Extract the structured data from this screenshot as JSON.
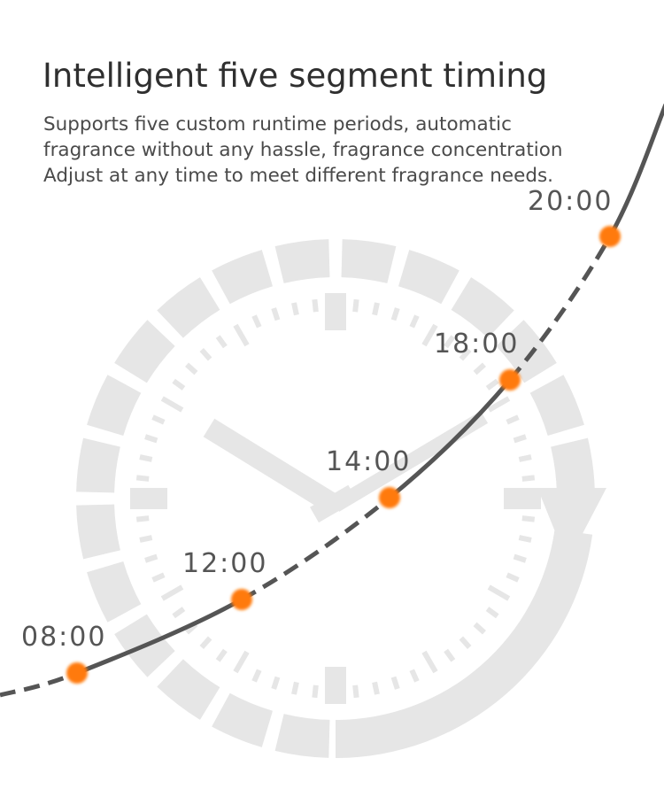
{
  "title": "Intelligent five segment timing",
  "description": "Supports five custom runtime periods, automatic fragrance without any hassle, fragrance concentration Adjust at any time to meet different fragrance needs.",
  "timeline": {
    "points": [
      {
        "label": "08:00"
      },
      {
        "label": "12:00"
      },
      {
        "label": "14:00"
      },
      {
        "label": "18:00"
      },
      {
        "label": "20:00"
      }
    ]
  },
  "colors": {
    "accent": "#ff7a0a",
    "curve": "#555555",
    "clock": "#e6e6e6",
    "text": "#2f2f2f"
  },
  "icons": [
    "clock-icon",
    "refresh-arrow-icon"
  ]
}
